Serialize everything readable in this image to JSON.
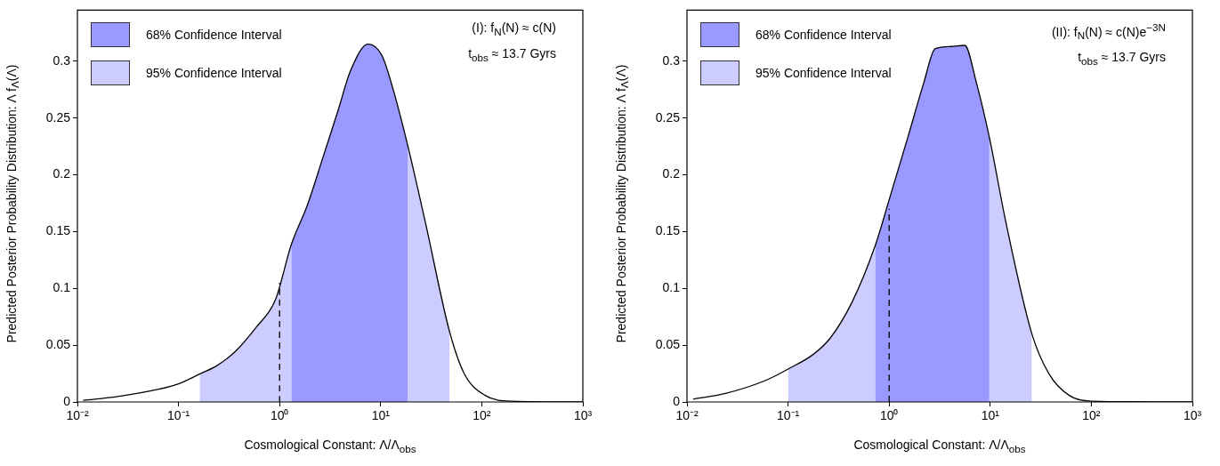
{
  "chart_data": [
    {
      "type": "area",
      "xlabel": "Cosmological Constant: Λ/Λ$_{obs}$",
      "ylabel": "Predicted Posterior Probability Distribution: Λ f$_{Λ}$(Λ)",
      "annotations": [
        "(I): f$_{N}$(N) ≈ c(N)",
        "t$_{obs}$ ≈ 13.7 Gyrs"
      ],
      "log": "x",
      "grid": false,
      "legend": "top left",
      "marker": "none",
      "xlim": [
        0.01,
        1000
      ],
      "ylim": [
        0,
        0.345
      ],
      "xticks": [
        {
          "value": 0.01,
          "label": "10⁻²"
        },
        {
          "value": 0.1,
          "label": "10⁻¹"
        },
        {
          "value": 1,
          "label": "10⁰"
        },
        {
          "value": 10,
          "label": "10¹"
        },
        {
          "value": 100,
          "label": "10²"
        },
        {
          "value": 1000,
          "label": "10³"
        }
      ],
      "yticks": [
        0,
        0.05,
        0.1,
        0.15,
        0.2,
        0.25,
        0.3
      ],
      "series": [
        {
          "type": "line",
          "color": "#000000",
          "x": [
            0.0114,
            0.025,
            0.062,
            0.1,
            0.162,
            0.24,
            0.37,
            0.59,
            0.91,
            1.31,
            1.86,
            2.7,
            3.8,
            5.0,
            7.5,
            10.3,
            13.4,
            18.5,
            27.7,
            48,
            67,
            107,
            200,
            1000
          ],
          "values": [
            0.0014,
            0.0048,
            0.011,
            0.016,
            0.0246,
            0.032,
            0.045,
            0.066,
            0.09,
            0.139,
            0.172,
            0.216,
            0.257,
            0.291,
            0.315,
            0.305,
            0.274,
            0.226,
            0.158,
            0.062,
            0.025,
            0.006,
            0.0007,
            0
          ]
        },
        {
          "type": "line",
          "color": "#000000",
          "line_style": "dashed",
          "x": [
            1,
            1
          ],
          "values": [
            0,
            0.105
          ]
        },
        {
          "name": "68% Confidence Interval",
          "color": "#9999ff",
          "x": [
            1.31,
            1.86,
            2.7,
            3.8,
            5.0,
            7.5,
            10.3,
            13.4,
            18.5
          ],
          "values": [
            0.139,
            0.172,
            0.216,
            0.257,
            0.291,
            0.315,
            0.305,
            0.274,
            0.226
          ]
        },
        {
          "name": "95% Confidence Interval",
          "color": "#ccccff",
          "x": [
            0.162,
            0.24,
            0.37,
            0.59,
            0.91,
            1.31,
            1.86,
            2.7,
            3.8,
            5.0,
            7.5,
            10.3,
            13.4,
            18.5,
            27.7,
            48
          ],
          "values": [
            0.0246,
            0.032,
            0.045,
            0.066,
            0.09,
            0.139,
            0.172,
            0.216,
            0.257,
            0.291,
            0.315,
            0.305,
            0.274,
            0.226,
            0.158,
            0.062
          ]
        }
      ]
    },
    {
      "type": "area",
      "xlabel": "Cosmological Constant: Λ/Λ$_{obs}$",
      "ylabel": "Predicted Posterior Probability Distribution: Λ f$_{Λ}$(Λ)",
      "annotations": [
        "(II): f$_{N}$(N) ≈ c(N)e$^{−3N}$",
        "t$_{obs}$ ≈ 13.7 Gyrs"
      ],
      "log": "x",
      "grid": false,
      "legend": "top left",
      "marker": "none",
      "xlim": [
        0.01,
        1000
      ],
      "ylim": [
        0,
        0.345
      ],
      "xticks": [
        {
          "value": 0.01,
          "label": "10⁻²"
        },
        {
          "value": 0.1,
          "label": "10⁻¹"
        },
        {
          "value": 1,
          "label": "10⁰"
        },
        {
          "value": 10,
          "label": "10¹"
        },
        {
          "value": 100,
          "label": "10²"
        },
        {
          "value": 1000,
          "label": "10³"
        }
      ],
      "yticks": [
        0,
        0.05,
        0.1,
        0.15,
        0.2,
        0.25,
        0.3
      ],
      "series": [
        {
          "type": "line",
          "color": "#000000",
          "x": [
            0.0115,
            0.024,
            0.06,
            0.1,
            0.178,
            0.26,
            0.43,
            0.73,
            1.0,
            1.53,
            2.2,
            2.85,
            4.1,
            5.6,
            7.3,
            9.8,
            14.3,
            25.8,
            38,
            60,
            100,
            1000
          ],
          "values": [
            0.0024,
            0.0075,
            0.019,
            0.029,
            0.042,
            0.056,
            0.088,
            0.138,
            0.178,
            0.233,
            0.281,
            0.311,
            0.313,
            0.314,
            0.281,
            0.233,
            0.158,
            0.06,
            0.025,
            0.006,
            0.0007,
            0
          ]
        },
        {
          "type": "line",
          "color": "#000000",
          "line_style": "dashed",
          "x": [
            1,
            1
          ],
          "values": [
            0,
            0.17
          ]
        },
        {
          "name": "68% Confidence Interval",
          "color": "#9999ff",
          "x": [
            0.73,
            1.0,
            1.53,
            2.2,
            2.85,
            4.1,
            5.6,
            7.3,
            9.8
          ],
          "values": [
            0.138,
            0.178,
            0.233,
            0.281,
            0.311,
            0.313,
            0.314,
            0.281,
            0.233
          ]
        },
        {
          "name": "95% Confidence Interval",
          "color": "#ccccff",
          "x": [
            0.1,
            0.178,
            0.26,
            0.43,
            0.73,
            1.0,
            1.53,
            2.2,
            2.85,
            4.1,
            5.6,
            7.3,
            9.8,
            14.3,
            25.8
          ],
          "values": [
            0.029,
            0.042,
            0.056,
            0.088,
            0.138,
            0.178,
            0.233,
            0.281,
            0.311,
            0.313,
            0.314,
            0.281,
            0.233,
            0.158,
            0.06
          ]
        }
      ]
    }
  ]
}
